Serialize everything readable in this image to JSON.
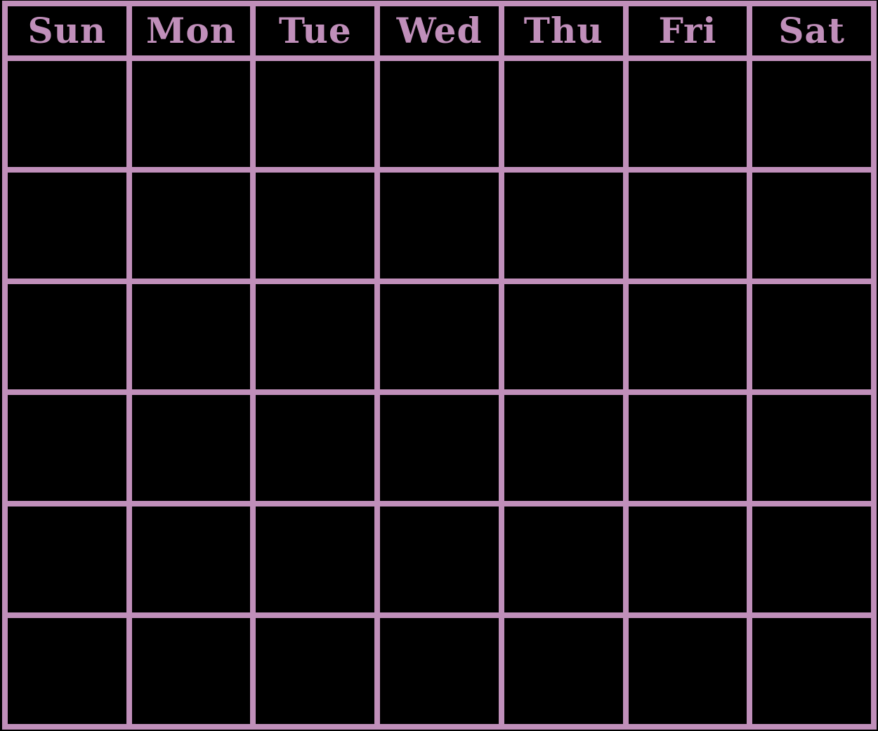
{
  "calendar": {
    "type": "blank-monthly-calendar",
    "columns": 7,
    "week_rows": 6,
    "days": [
      "Sun",
      "Mon",
      "Tue",
      "Wed",
      "Thu",
      "Fri",
      "Sat"
    ],
    "colors": {
      "grid_line": "#c08fba",
      "header_text": "#c08fba",
      "cell_background": "#000000"
    },
    "cell_contents": "empty"
  }
}
